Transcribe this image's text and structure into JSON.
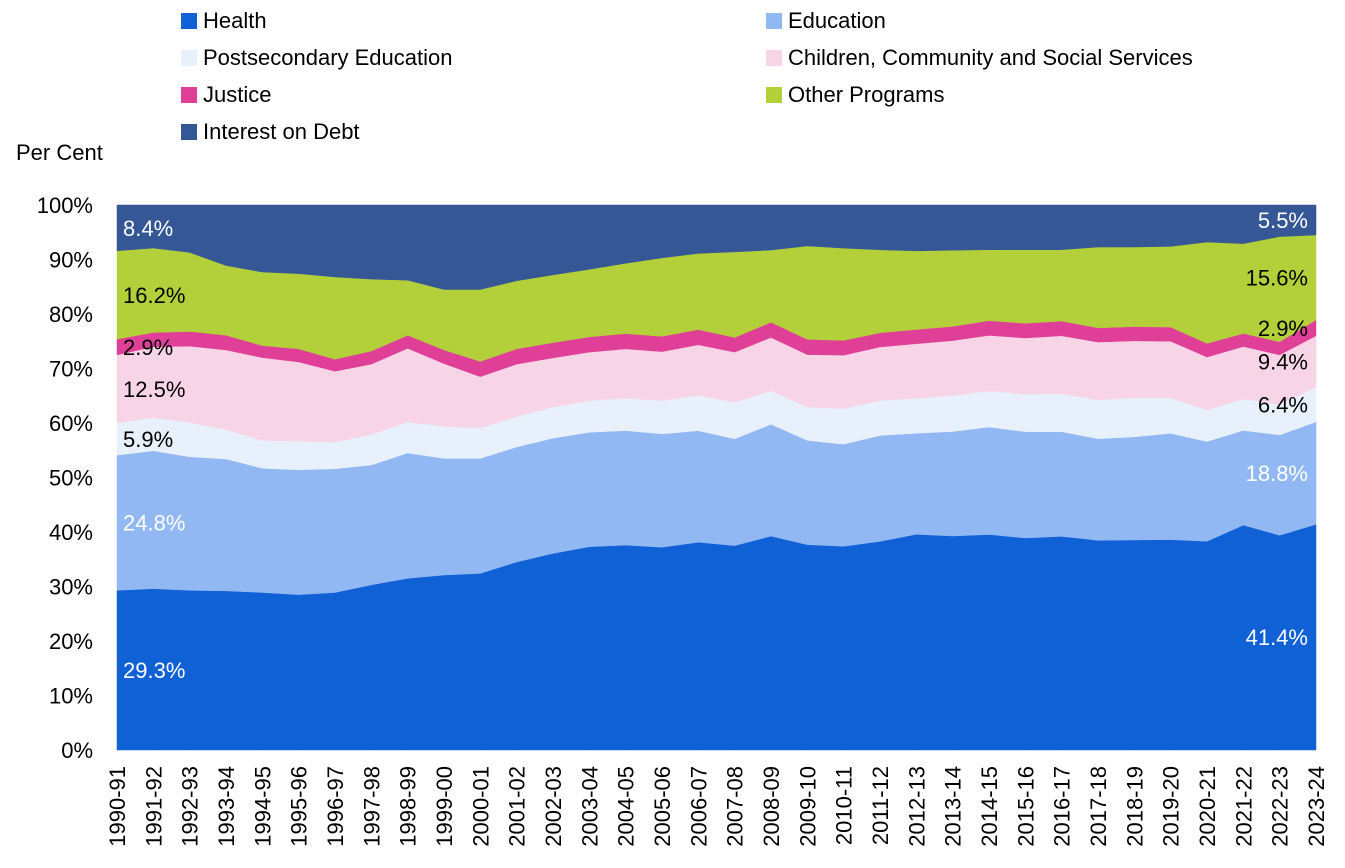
{
  "chart_data": {
    "type": "area",
    "stacked": true,
    "normalized": true,
    "title": "",
    "ylabel": "Per Cent",
    "xlabel": "",
    "ylim": [
      0,
      100
    ],
    "grid": false,
    "legend_placement": "top",
    "y_ticks": [
      "0%",
      "10%",
      "20%",
      "30%",
      "40%",
      "50%",
      "60%",
      "70%",
      "80%",
      "90%",
      "100%"
    ],
    "categories": [
      "1990-91",
      "1991-92",
      "1992-93",
      "1993-94",
      "1994-95",
      "1995-96",
      "1996-97",
      "1997-98",
      "1998-99",
      "1999-00",
      "2000-01",
      "2001-02",
      "2002-03",
      "2003-04",
      "2004-05",
      "2005-06",
      "2006-07",
      "2007-08",
      "2008-09",
      "2009-10",
      "2010-11",
      "2011-12",
      "2012-13",
      "2013-14",
      "2014-15",
      "2015-16",
      "2016-17",
      "2017-18",
      "2018-19",
      "2019-20",
      "2020-21",
      "2021-22",
      "2022-23",
      "2023-24"
    ],
    "series": [
      {
        "name": "Health",
        "color": "#1060d6",
        "values": [
          29.3,
          29.6,
          29.3,
          29.2,
          28.9,
          28.5,
          28.9,
          30.3,
          31.5,
          32.1,
          32.4,
          34.5,
          36.0,
          37.3,
          37.6,
          37.2,
          38.2,
          37.5,
          39.4,
          37.6,
          37.3,
          38.2,
          39.5,
          39.3,
          39.5,
          38.9,
          39.2,
          38.4,
          38.5,
          38.6,
          38.3,
          41.3,
          39.4,
          41.4
        ]
      },
      {
        "name": "Education",
        "color": "#91b8f2",
        "values": [
          24.8,
          25.3,
          24.5,
          24.2,
          22.8,
          22.9,
          22.7,
          22.0,
          23.0,
          21.4,
          21.1,
          21.1,
          21.1,
          21.0,
          21.0,
          20.8,
          20.5,
          19.6,
          20.6,
          19.1,
          18.7,
          19.4,
          18.5,
          19.2,
          19.7,
          19.5,
          19.2,
          18.6,
          18.9,
          19.5,
          18.3,
          17.4,
          18.4,
          18.8
        ]
      },
      {
        "name": "Postsecondary Education",
        "color": "#e8f0fb",
        "values": [
          5.9,
          6.1,
          6.3,
          5.4,
          5.1,
          5.3,
          4.9,
          5.6,
          5.7,
          5.9,
          5.6,
          5.6,
          5.7,
          5.8,
          6.0,
          6.1,
          6.5,
          6.7,
          6.2,
          6.1,
          6.5,
          6.4,
          6.4,
          6.6,
          6.6,
          6.9,
          7.0,
          7.1,
          7.2,
          6.5,
          5.8,
          5.8,
          5.6,
          6.4
        ]
      },
      {
        "name": "Children, Community and Social Services",
        "color": "#f7d5e7",
        "values": [
          12.5,
          13.0,
          14.0,
          14.6,
          15.2,
          14.5,
          13.0,
          12.9,
          13.5,
          11.5,
          9.4,
          9.6,
          9.0,
          8.9,
          9.0,
          9.0,
          9.3,
          9.2,
          9.8,
          9.6,
          9.8,
          9.8,
          10.0,
          10.1,
          10.2,
          10.3,
          10.6,
          10.6,
          10.4,
          10.4,
          9.7,
          9.6,
          9.1,
          9.4
        ]
      },
      {
        "name": "Justice",
        "color": "#e03f97",
        "values": [
          2.9,
          2.6,
          2.7,
          2.7,
          2.2,
          2.4,
          2.2,
          2.4,
          2.4,
          2.5,
          2.8,
          2.8,
          2.8,
          2.8,
          2.8,
          2.8,
          2.8,
          2.7,
          2.8,
          2.8,
          2.7,
          2.6,
          2.6,
          2.6,
          2.7,
          2.7,
          2.7,
          2.6,
          2.6,
          2.6,
          2.5,
          2.4,
          2.4,
          2.9
        ]
      },
      {
        "name": "Other Programs",
        "color": "#b3cf3a",
        "values": [
          16.2,
          15.5,
          14.5,
          12.8,
          13.5,
          13.8,
          15.1,
          13.2,
          10.1,
          11.1,
          13.2,
          12.5,
          12.4,
          12.4,
          12.9,
          14.4,
          14.0,
          15.7,
          13.3,
          17.1,
          16.9,
          15.2,
          14.4,
          14.0,
          13.0,
          13.5,
          13.1,
          14.8,
          14.6,
          14.8,
          18.6,
          16.5,
          19.3,
          15.6
        ]
      },
      {
        "name": "Interest on Debt",
        "color": "#355796",
        "values": [
          8.4,
          7.9,
          8.7,
          11.1,
          12.3,
          12.6,
          13.2,
          13.6,
          13.8,
          15.5,
          15.5,
          13.9,
          12.8,
          11.8,
          10.7,
          9.7,
          8.9,
          8.6,
          8.3,
          7.5,
          7.9,
          8.2,
          8.4,
          8.3,
          8.2,
          8.2,
          8.2,
          7.7,
          7.7,
          7.6,
          6.8,
          7.1,
          5.8,
          5.5
        ]
      }
    ],
    "annotations": {
      "left": [
        {
          "series": "Health",
          "text": "29.3%",
          "color": "#ffffff"
        },
        {
          "series": "Education",
          "text": "24.8%",
          "color": "#ffffff"
        },
        {
          "series": "Postsecondary Education",
          "text": "5.9%",
          "color": "#000000"
        },
        {
          "series": "Children, Community and Social Services",
          "text": "12.5%",
          "color": "#000000"
        },
        {
          "series": "Justice",
          "text": "2.9%",
          "color": "#000000"
        },
        {
          "series": "Other Programs",
          "text": "16.2%",
          "color": "#000000"
        },
        {
          "series": "Interest on Debt",
          "text": "8.4%",
          "color": "#ffffff"
        }
      ],
      "right": [
        {
          "series": "Health",
          "text": "41.4%",
          "color": "#ffffff"
        },
        {
          "series": "Education",
          "text": "18.8%",
          "color": "#ffffff"
        },
        {
          "series": "Postsecondary Education",
          "text": "6.4%",
          "color": "#000000"
        },
        {
          "series": "Children, Community and Social Services",
          "text": "9.4%",
          "color": "#000000"
        },
        {
          "series": "Justice",
          "text": "2.9%",
          "color": "#000000"
        },
        {
          "series": "Other Programs",
          "text": "15.6%",
          "color": "#000000"
        },
        {
          "series": "Interest on Debt",
          "text": "5.5%",
          "color": "#ffffff"
        }
      ]
    }
  }
}
